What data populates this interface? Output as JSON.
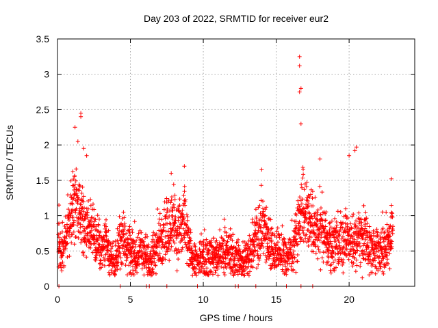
{
  "chart_data": {
    "type": "scatter",
    "title": "Day 203 of 2022, SRMTID for receiver eur2",
    "xlabel": "GPS time / hours",
    "ylabel": "SRMTID / TECUs",
    "xlim": [
      0,
      24.5
    ],
    "ylim": [
      0,
      3.5
    ],
    "x_ticks": [
      0,
      5,
      10,
      15,
      20
    ],
    "x_tick_labels": [
      "0",
      "5",
      "10",
      "15",
      "20"
    ],
    "y_ticks": [
      0,
      0.5,
      1,
      1.5,
      2,
      2.5,
      3,
      3.5
    ],
    "y_tick_labels": [
      "0",
      "0.5",
      "1",
      "1.5",
      "2",
      "2.5",
      "3",
      "3.5"
    ],
    "grid": true,
    "marker": "+",
    "series": [
      {
        "name": "SRMTID",
        "color": "#ff0000",
        "profile_x": [
          0.0,
          0.3,
          0.6,
          0.9,
          1.2,
          1.5,
          1.8,
          2.1,
          2.4,
          2.7,
          3.0,
          3.3,
          3.6,
          3.9,
          4.2,
          4.5,
          4.8,
          5.1,
          5.4,
          5.7,
          6.0,
          6.3,
          6.6,
          6.9,
          7.2,
          7.5,
          7.8,
          8.1,
          8.4,
          8.7,
          9.0,
          9.3,
          9.6,
          9.9,
          10.2,
          10.5,
          10.8,
          11.1,
          11.4,
          11.7,
          12.0,
          12.3,
          12.6,
          12.9,
          13.2,
          13.5,
          13.8,
          14.1,
          14.4,
          14.7,
          15.0,
          15.3,
          15.6,
          15.9,
          16.2,
          16.5,
          16.8,
          17.1,
          17.4,
          17.7,
          18.0,
          18.3,
          18.6,
          18.9,
          19.2,
          19.5,
          19.8,
          20.1,
          20.4,
          20.7,
          21.0,
          21.3,
          21.6,
          21.9,
          22.2,
          22.5,
          22.8,
          23.0
        ],
        "profile_y": [
          0.55,
          0.45,
          0.7,
          0.95,
          1.15,
          1.05,
          0.95,
          0.85,
          0.75,
          0.65,
          0.55,
          0.6,
          0.35,
          0.3,
          0.55,
          0.65,
          0.55,
          0.5,
          0.45,
          0.5,
          0.4,
          0.35,
          0.45,
          0.6,
          0.7,
          0.85,
          0.95,
          0.8,
          0.75,
          0.9,
          0.6,
          0.4,
          0.35,
          0.4,
          0.4,
          0.45,
          0.4,
          0.45,
          0.5,
          0.45,
          0.45,
          0.4,
          0.35,
          0.4,
          0.45,
          0.6,
          0.75,
          0.8,
          0.65,
          0.55,
          0.5,
          0.45,
          0.4,
          0.45,
          0.55,
          0.85,
          1.05,
          0.95,
          0.85,
          0.75,
          0.8,
          0.7,
          0.6,
          0.55,
          0.6,
          0.65,
          0.7,
          0.6,
          0.55,
          0.7,
          0.75,
          0.6,
          0.5,
          0.55,
          0.5,
          0.6,
          0.7,
          0.75
        ],
        "outliers": [
          {
            "x": 0.1,
            "y": 1.15
          },
          {
            "x": 1.2,
            "y": 2.25
          },
          {
            "x": 1.6,
            "y": 2.45
          },
          {
            "x": 1.6,
            "y": 2.4
          },
          {
            "x": 1.4,
            "y": 2.05
          },
          {
            "x": 1.8,
            "y": 1.95
          },
          {
            "x": 2.0,
            "y": 1.85
          },
          {
            "x": 8.7,
            "y": 1.7
          },
          {
            "x": 7.8,
            "y": 1.6
          },
          {
            "x": 14.0,
            "y": 1.65
          },
          {
            "x": 16.6,
            "y": 3.25
          },
          {
            "x": 16.6,
            "y": 3.12
          },
          {
            "x": 16.7,
            "y": 2.8
          },
          {
            "x": 16.6,
            "y": 2.75
          },
          {
            "x": 16.7,
            "y": 2.3
          },
          {
            "x": 18.0,
            "y": 1.8
          },
          {
            "x": 20.0,
            "y": 1.85
          },
          {
            "x": 20.5,
            "y": 1.97
          },
          {
            "x": 20.4,
            "y": 1.92
          },
          {
            "x": 22.9,
            "y": 1.52
          },
          {
            "x": 20.9,
            "y": 0.12
          }
        ],
        "zero_points": [
          0.1,
          4.3,
          6.1,
          6.3,
          7.5,
          9.6,
          12.2,
          12.4,
          13.6,
          15.7,
          16.7,
          17.5
        ]
      }
    ]
  }
}
